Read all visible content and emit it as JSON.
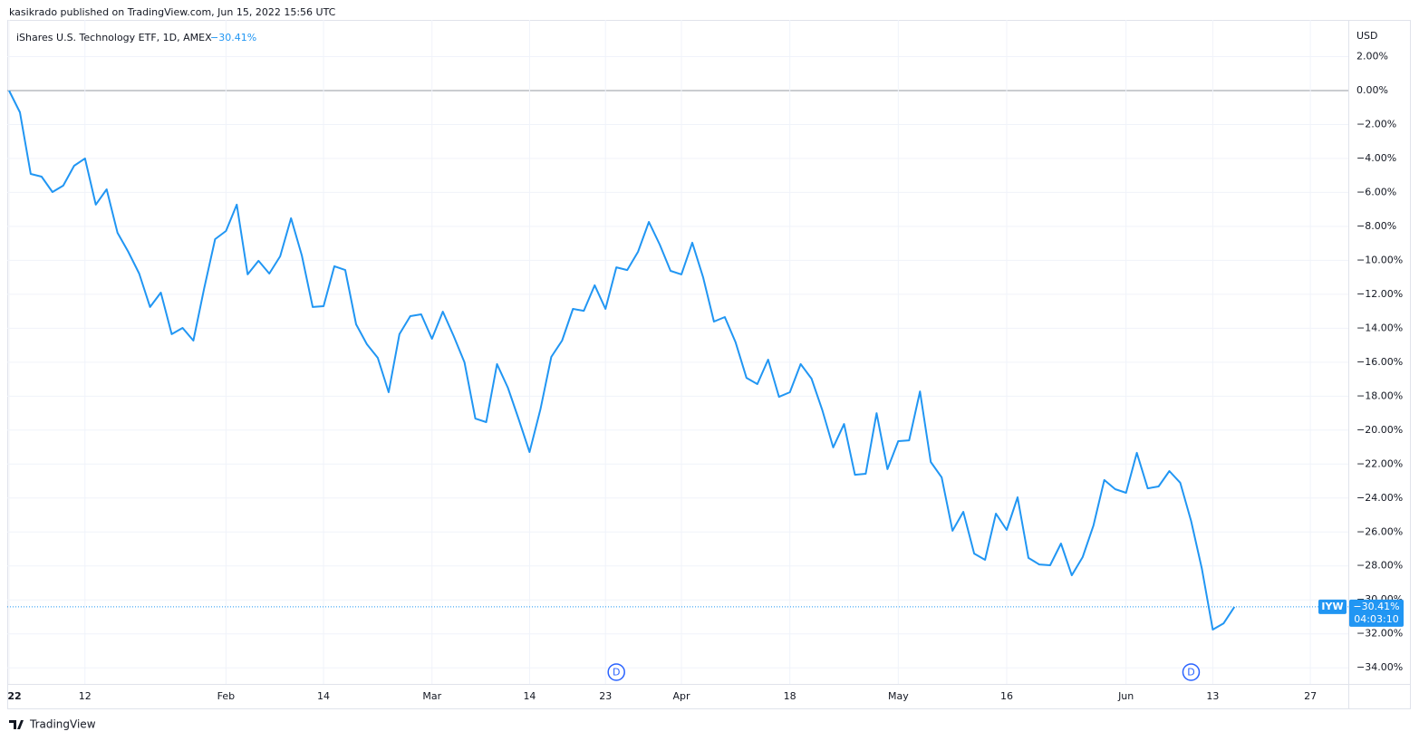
{
  "header": "kasikrado published on TradingView.com, Jun 15, 2022 15:56 UTC",
  "brand": "TradingView",
  "chart_data": {
    "type": "line",
    "title": "iShares U.S. Technology ETF, 1D, AMEX",
    "symbol": "IYW",
    "currency": "USD",
    "last_label": "−30.41%",
    "countdown": "04:03:10",
    "color": "#2196f3",
    "grid": true,
    "values": [
      0,
      -1.28,
      -4.91,
      -5.07,
      -5.98,
      -5.6,
      -4.43,
      -4.0,
      -6.72,
      -5.82,
      -8.38,
      -9.5,
      -10.78,
      -12.75,
      -11.9,
      -14.35,
      -13.98,
      -14.73,
      -11.63,
      -8.75,
      -8.27,
      -6.72,
      -10.83,
      -10.03,
      -10.78,
      -9.76,
      -7.52,
      -9.71,
      -12.75,
      -12.7,
      -10.35,
      -10.57,
      -13.77,
      -14.94,
      -15.74,
      -17.77,
      -14.35,
      -13.29,
      -13.18,
      -14.62,
      -13.02,
      -14.46,
      -16.01,
      -19.32,
      -19.53,
      -16.11,
      -17.5,
      -19.37,
      -21.29,
      -18.78,
      -15.69,
      -14.73,
      -12.86,
      -12.97,
      -11.47,
      -12.86,
      -10.41,
      -10.57,
      -9.5,
      -7.74,
      -9.07,
      -10.62,
      -10.83,
      -8.96,
      -10.99,
      -13.61,
      -13.34,
      -14.83,
      -16.92,
      -17.29,
      -15.85,
      -18.04,
      -17.77,
      -16.11,
      -16.97,
      -18.84,
      -21.02,
      -19.64,
      -22.63,
      -22.57,
      -19.0,
      -22.3,
      -20.65,
      -20.6,
      -17.72,
      -21.88,
      -22.78,
      -25.93,
      -24.81,
      -27.27,
      -27.64,
      -24.92,
      -25.88,
      -23.96,
      -27.53,
      -27.91,
      -27.96,
      -26.68,
      -28.55,
      -27.48,
      -25.61,
      -22.94,
      -23.48,
      -23.69,
      -21.34,
      -23.43,
      -23.32,
      -22.41,
      -23.1,
      -25.35,
      -28.17,
      -31.75,
      -31.38,
      -30.41
    ],
    "xlim": [
      0,
      123.5
    ],
    "xticks": [
      {
        "value": 0,
        "label": "22"
      },
      {
        "value": 7,
        "label": "12"
      },
      {
        "value": 20,
        "label": "Feb"
      },
      {
        "value": 29,
        "label": "14"
      },
      {
        "value": 39,
        "label": "Mar"
      },
      {
        "value": 48,
        "label": "14"
      },
      {
        "value": 55,
        "label": "23"
      },
      {
        "value": 62,
        "label": "Apr"
      },
      {
        "value": 72,
        "label": "18"
      },
      {
        "value": 82,
        "label": "May"
      },
      {
        "value": 92,
        "label": "16"
      },
      {
        "value": 103,
        "label": "Jun"
      },
      {
        "value": 111,
        "label": "13"
      },
      {
        "value": 120,
        "label": "27"
      }
    ],
    "ylim": [
      -34.95,
      4.16
    ],
    "yticks": [
      {
        "value": 2,
        "label": "2.00%"
      },
      {
        "value": 0,
        "label": "0.00%"
      },
      {
        "value": -2,
        "label": "−2.00%"
      },
      {
        "value": -4,
        "label": "−4.00%"
      },
      {
        "value": -6,
        "label": "−6.00%"
      },
      {
        "value": -8,
        "label": "−8.00%"
      },
      {
        "value": -10,
        "label": "−10.00%"
      },
      {
        "value": -12,
        "label": "−12.00%"
      },
      {
        "value": -14,
        "label": "−14.00%"
      },
      {
        "value": -16,
        "label": "−16.00%"
      },
      {
        "value": -18,
        "label": "−18.00%"
      },
      {
        "value": -20,
        "label": "−20.00%"
      },
      {
        "value": -22,
        "label": "−22.00%"
      },
      {
        "value": -24,
        "label": "−24.00%"
      },
      {
        "value": -26,
        "label": "−26.00%"
      },
      {
        "value": -28,
        "label": "−28.00%"
      },
      {
        "value": -30,
        "label": "−30.00%"
      },
      {
        "value": -32,
        "label": "−32.00%"
      },
      {
        "value": -34,
        "label": "−34.00%"
      }
    ],
    "markers": [
      {
        "label": "D",
        "x": 56
      },
      {
        "label": "D",
        "x": 109
      }
    ]
  }
}
